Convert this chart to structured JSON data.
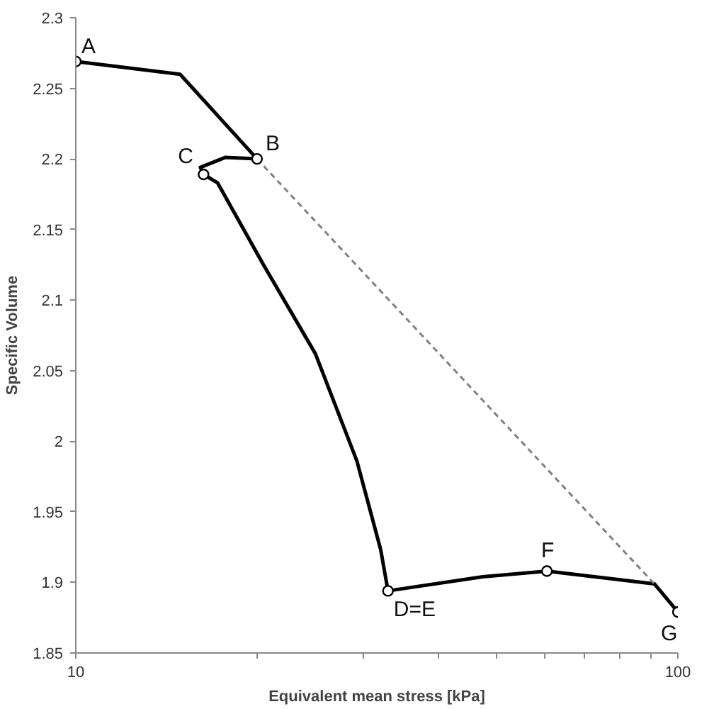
{
  "chart_data": {
    "type": "line",
    "xlabel": "Equivalent mean stress [kPa]",
    "ylabel": "Specific Volume",
    "log": "x",
    "xlim": [
      10,
      100
    ],
    "ylim": [
      1.85,
      2.3
    ],
    "xticks": [
      10,
      {
        "value": 20,
        "label": null
      },
      {
        "value": 30,
        "label": null
      },
      {
        "value": 40,
        "label": null
      },
      {
        "value": 50,
        "label": null
      },
      {
        "value": 60,
        "label": null
      },
      {
        "value": 70,
        "label": null
      },
      {
        "value": 80,
        "label": null
      },
      {
        "value": 90,
        "label": null
      },
      100
    ],
    "yticks": [
      1.85,
      1.9,
      1.95,
      2,
      2.05,
      2.1,
      2.15,
      2.2,
      2.25,
      2.3
    ],
    "grid": false,
    "series": [
      {
        "color": "#000000",
        "line_style": "solid",
        "x": [
          10,
          14.9,
          20,
          17.7,
          16.1,
          16.3,
          17.2,
          20.5,
          25.0,
          29.3,
          32.1,
          33.0,
          47.4,
          60.6,
          91.4,
          100
        ],
        "values": [
          2.269,
          2.26,
          2.2,
          2.201,
          2.194,
          2.189,
          2.183,
          2.125,
          2.062,
          1.986,
          1.923,
          1.894,
          1.904,
          1.908,
          1.899,
          1.879
        ]
      },
      {
        "type": "line",
        "color": "#808080",
        "line_style": "dashed",
        "x": [
          20,
          91.4
        ],
        "values": [
          2.2,
          1.899
        ]
      },
      {
        "type": "scatter",
        "color": "#000000",
        "marker": "circle",
        "x": [
          10,
          20,
          16.3,
          33.0,
          60.6,
          100
        ],
        "values": [
          2.269,
          2.2,
          2.189,
          1.894,
          1.908,
          1.879
        ]
      }
    ],
    "annotations": [
      {
        "text": "A",
        "x": 10,
        "y": 2.269
      },
      {
        "text": "B",
        "x": 20,
        "y": 2.2
      },
      {
        "text": "C",
        "x": 16.3,
        "y": 2.189
      },
      {
        "text": "D=E",
        "x": 33.0,
        "y": 1.894
      },
      {
        "text": "F",
        "x": 60.6,
        "y": 1.908
      },
      {
        "text": "G",
        "x": 100,
        "y": 1.879
      }
    ]
  }
}
